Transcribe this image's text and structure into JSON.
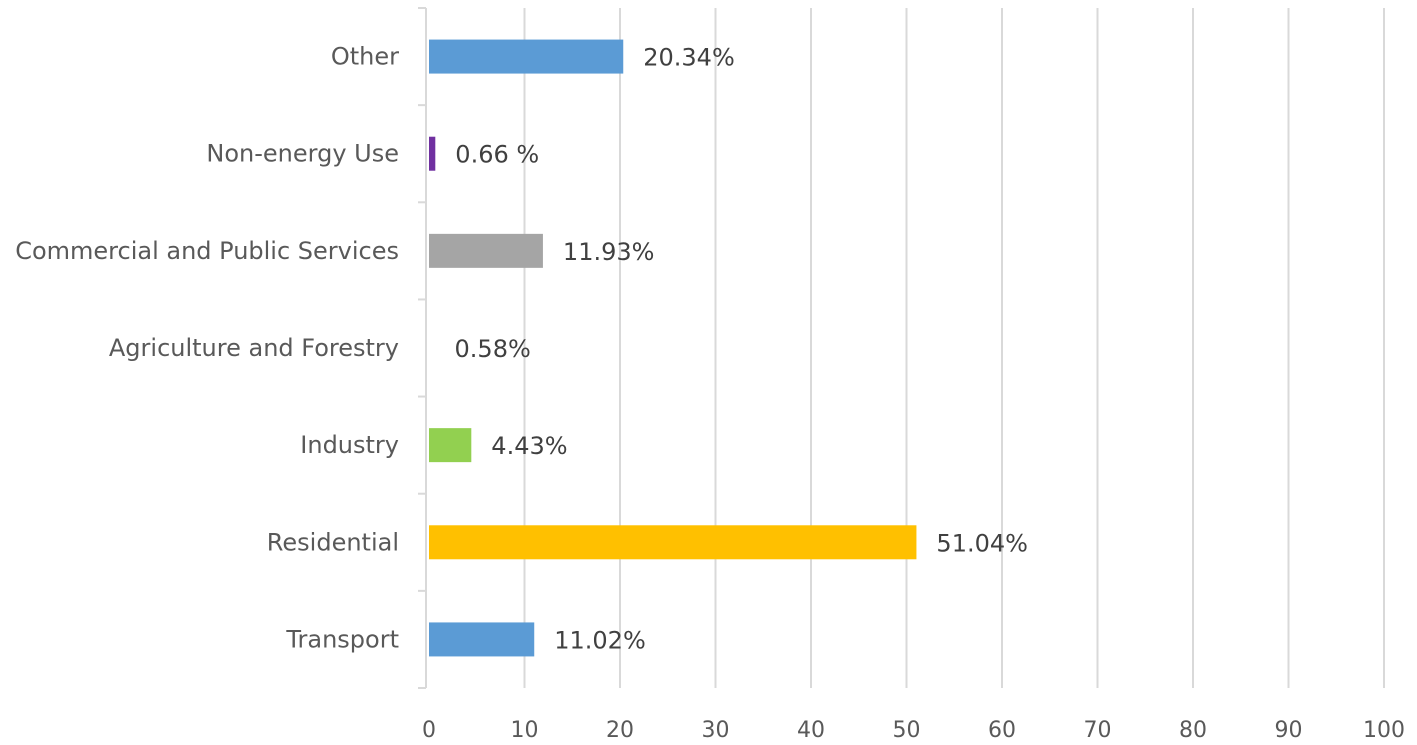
{
  "chart_data": {
    "type": "bar",
    "orientation": "horizontal",
    "title": "",
    "xlabel": "",
    "ylabel": "",
    "xlim": [
      0,
      100
    ],
    "x_ticks": [
      0,
      10,
      20,
      30,
      40,
      50,
      60,
      70,
      80,
      90,
      100
    ],
    "grid": true,
    "legend": "none",
    "categories": [
      "Transport",
      "Residential",
      "Industry",
      "Agriculture and Forestry",
      "Commercial and Public Services",
      "Non-energy Use",
      "Other"
    ],
    "values": [
      11.02,
      51.04,
      4.43,
      0.58,
      11.93,
      0.66,
      20.34
    ],
    "value_labels": [
      "11.02%",
      "51.04%",
      "4.43%",
      "0.58%",
      "11.93%",
      "0.66 %",
      "20.34%"
    ],
    "colors": [
      "#5b9bd5",
      "#ffc000",
      "#92d050",
      "#ffffff",
      "#a5a5a5",
      "#7030a0",
      "#5b9bd5"
    ]
  }
}
